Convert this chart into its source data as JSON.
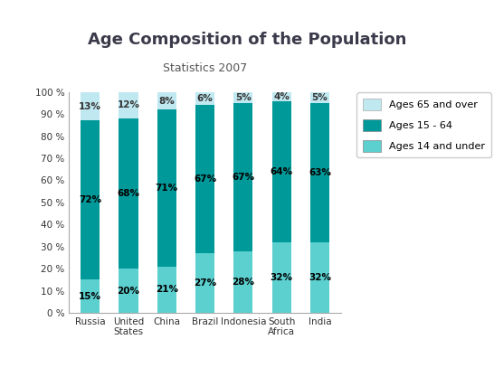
{
  "title": "Age Composition of the Population",
  "subtitle": "Statistics 2007",
  "categories": [
    "Russia",
    "United\nStates",
    "China",
    "Brazil",
    "Indonesia",
    "South\nAfrica",
    "India"
  ],
  "ages_14_under": [
    15,
    20,
    21,
    27,
    28,
    32,
    32
  ],
  "ages_15_64": [
    72,
    68,
    71,
    67,
    67,
    64,
    63
  ],
  "ages_65_over": [
    13,
    12,
    8,
    6,
    5,
    4,
    5
  ],
  "color_14_under": "#5CCFCF",
  "color_15_64": "#009999",
  "color_65_over": "#C0E8F0",
  "title_bg_top": "#C5EAF0",
  "title_bg_bot": "#E8F8FC",
  "chart_bg_color": "#FFFFFF",
  "bar_width": 0.5,
  "ylim": [
    0,
    100
  ],
  "yticks": [
    0,
    10,
    20,
    30,
    40,
    50,
    60,
    70,
    80,
    90,
    100
  ],
  "legend_labels": [
    "Ages 65 and over",
    "Ages 15 - 64",
    "Ages 14 and under"
  ],
  "legend_colors": [
    "#C0E8F0",
    "#009999",
    "#5CCFCF"
  ]
}
